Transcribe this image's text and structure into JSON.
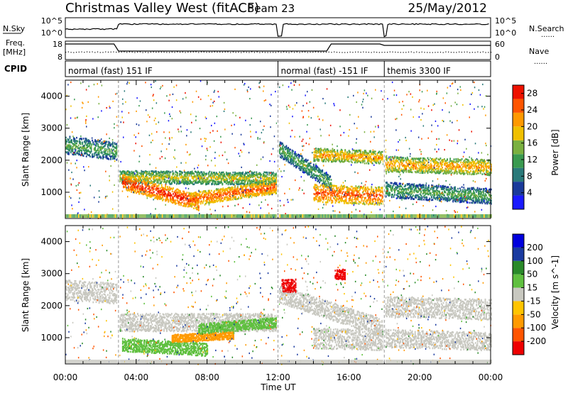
{
  "header": {
    "station_title": "Christmas Valley West (fitACF)",
    "beam": "Beam 23",
    "date": "25/May/2012"
  },
  "labels": {
    "nsky": "N.Sky",
    "nsearch": "N.Search",
    "freq": "Freq.",
    "freq_unit": "[MHz]",
    "nave": "Nave",
    "cpid": "CPID",
    "legend_dots": "......"
  },
  "cpid_segments": [
    {
      "label": "normal (fast) 151 IF",
      "start_h": 0,
      "end_h": 12
    },
    {
      "label": "normal (fast) -151 IF",
      "start_h": 12,
      "end_h": 18
    },
    {
      "label": "themis 3300 IF",
      "start_h": 18,
      "end_h": 24
    }
  ],
  "top_axes": {
    "nsky_ticks": [
      "10^5",
      "10^0"
    ],
    "nsearch_ticks": [
      "10^5",
      "10^0"
    ],
    "freq_ticks": [
      "18",
      "8"
    ],
    "nave_ticks": [
      "60",
      "0"
    ]
  },
  "colors": {
    "power": [
      "#1a1aff",
      "#1a3a9a",
      "#2a7a7a",
      "#3a9a50",
      "#7ab040",
      "#f0c000",
      "#ff9900",
      "#ff5500",
      "#ee1100"
    ],
    "velocity": [
      "#ee0000",
      "#ff5500",
      "#ff9a00",
      "#ffc400",
      "#c8c8c0",
      "#60c040",
      "#2a8a2a",
      "#1a3aa0",
      "#0000dd"
    ]
  },
  "chart_data": [
    {
      "type": "heatmap",
      "name": "power",
      "xlabel": "Time UT",
      "ylabel": "Slant Range [km]",
      "xlim": [
        0,
        24
      ],
      "ylim": [
        180,
        4500
      ],
      "x_ticks": [
        "00:00",
        "04:00",
        "08:00",
        "12:00",
        "16:00",
        "20:00",
        "00:00"
      ],
      "x_tick_values": [
        0,
        4,
        8,
        12,
        16,
        20,
        24
      ],
      "y_ticks": [
        1000,
        2000,
        3000,
        4000
      ],
      "colorbar_label": "Power [dB]",
      "colorbar_ticks": [
        4,
        8,
        12,
        16,
        20,
        24,
        28
      ],
      "colorbar_range": [
        0,
        30
      ],
      "bands": [
        {
          "t0": 0.0,
          "t1": 3.0,
          "r_start": 2500,
          "r_end": 2300,
          "width": 350,
          "value": 14
        },
        {
          "t0": 3.0,
          "t1": 12.0,
          "r_start": 1500,
          "r_end": 1450,
          "width": 250,
          "value": 18
        },
        {
          "t0": 3.2,
          "t1": 7.5,
          "r_start": 1350,
          "r_end": 700,
          "width": 300,
          "value": 28
        },
        {
          "t0": 7.0,
          "t1": 12.0,
          "r_start": 800,
          "r_end": 1200,
          "width": 250,
          "value": 26
        },
        {
          "t0": 12.0,
          "t1": 15.0,
          "r_start": 2400,
          "r_end": 1300,
          "width": 300,
          "value": 14
        },
        {
          "t0": 14.0,
          "t1": 18.0,
          "r_start": 1000,
          "r_end": 900,
          "width": 350,
          "value": 26
        },
        {
          "t0": 14.0,
          "t1": 18.0,
          "r_start": 2200,
          "r_end": 2100,
          "width": 250,
          "value": 22
        },
        {
          "t0": 18.0,
          "t1": 24.0,
          "r_start": 1900,
          "r_end": 1800,
          "width": 300,
          "value": 22
        },
        {
          "t0": 18.0,
          "t1": 24.0,
          "r_start": 1100,
          "r_end": 900,
          "width": 300,
          "value": 14
        }
      ]
    },
    {
      "type": "heatmap",
      "name": "velocity",
      "xlabel": "Time UT",
      "ylabel": "Slant Range [km]",
      "xlim": [
        0,
        24
      ],
      "ylim": [
        180,
        4500
      ],
      "x_ticks": [
        "00:00",
        "04:00",
        "08:00",
        "12:00",
        "16:00",
        "20:00",
        "00:00"
      ],
      "x_tick_values": [
        0,
        4,
        8,
        12,
        16,
        20,
        24
      ],
      "y_ticks": [
        1000,
        2000,
        3000,
        4000
      ],
      "colorbar_label": "Velocity [m s^-1]",
      "colorbar_ticks": [
        200,
        100,
        50,
        15,
        -15,
        -50,
        -100,
        -200
      ],
      "bands": [
        {
          "t0": 0.0,
          "t1": 3.0,
          "r_start": 2500,
          "r_end": 2400,
          "width": 400,
          "value": 0
        },
        {
          "t0": 3.0,
          "t1": 12.0,
          "r_start": 1500,
          "r_end": 1500,
          "width": 350,
          "value": 0
        },
        {
          "t0": 3.2,
          "t1": 8.0,
          "r_start": 800,
          "r_end": 650,
          "width": 250,
          "value": 40
        },
        {
          "t0": 6.0,
          "t1": 9.5,
          "r_start": 1000,
          "r_end": 1100,
          "width": 150,
          "value": -60
        },
        {
          "t0": 7.5,
          "t1": 12.0,
          "r_start": 1300,
          "r_end": 1500,
          "width": 200,
          "value": 30
        },
        {
          "t0": 12.0,
          "t1": 18.0,
          "r_start": 2400,
          "r_end": 1300,
          "width": 350,
          "value": 0
        },
        {
          "t0": 14.0,
          "t1": 18.0,
          "r_start": 1000,
          "r_end": 950,
          "width": 400,
          "value": 0
        },
        {
          "t0": 18.0,
          "t1": 24.0,
          "r_start": 2000,
          "r_end": 1900,
          "width": 400,
          "value": 0
        },
        {
          "t0": 18.0,
          "t1": 24.0,
          "r_start": 1000,
          "r_end": 900,
          "width": 350,
          "value": 0
        },
        {
          "t0": 12.2,
          "t1": 13.0,
          "r_start": 2650,
          "r_end": 2650,
          "width": 250,
          "value": -250
        },
        {
          "t0": 15.2,
          "t1": 15.8,
          "r_start": 3000,
          "r_end": 3000,
          "width": 200,
          "value": -250
        }
      ]
    }
  ]
}
